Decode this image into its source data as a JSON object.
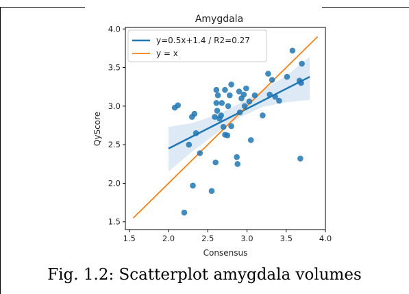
{
  "caption": "Fig. 1.2: Scatterplot amygdala volumes",
  "chart_data": {
    "type": "scatter",
    "title": "Amygdala",
    "xlabel": "Consensus",
    "ylabel": "QyScore",
    "xlim": [
      1.45,
      4.0
    ],
    "ylim": [
      1.4,
      4.02
    ],
    "xticks": [
      "1.5",
      "2.0",
      "2.5",
      "3.0",
      "3.5",
      "4.0"
    ],
    "yticks": [
      "1.5",
      "2.0",
      "2.5",
      "3.0",
      "3.5",
      "4.0"
    ],
    "grid": false,
    "legend_position": "top-left",
    "legend": [
      "y=0.5x+1.4 / R2=0.27",
      "y = x"
    ],
    "colors": {
      "points": "#1f77b4",
      "fit": "#1f77b4",
      "identity": "#ff7f0e",
      "band": "#c6dbef"
    },
    "points": [
      [
        2.08,
        2.98
      ],
      [
        2.12,
        3.01
      ],
      [
        2.2,
        1.62
      ],
      [
        2.26,
        2.5
      ],
      [
        2.3,
        2.86
      ],
      [
        2.31,
        1.97
      ],
      [
        2.33,
        2.9
      ],
      [
        2.35,
        2.65
      ],
      [
        2.4,
        2.39
      ],
      [
        2.55,
        1.9
      ],
      [
        2.59,
        2.86
      ],
      [
        2.6,
        2.27
      ],
      [
        2.61,
        3.04
      ],
      [
        2.61,
        3.21
      ],
      [
        2.62,
        2.94
      ],
      [
        2.63,
        3.14
      ],
      [
        2.65,
        2.84
      ],
      [
        2.67,
        2.88
      ],
      [
        2.68,
        3.04
      ],
      [
        2.7,
        2.73
      ],
      [
        2.72,
        3.21
      ],
      [
        2.72,
        2.63
      ],
      [
        2.75,
        2.62
      ],
      [
        2.76,
        3.0
      ],
      [
        2.78,
        3.14
      ],
      [
        2.8,
        3.28
      ],
      [
        2.8,
        2.74
      ],
      [
        2.87,
        2.34
      ],
      [
        2.88,
        2.25
      ],
      [
        2.9,
        3.19
      ],
      [
        2.91,
        2.92
      ],
      [
        2.93,
        3.1
      ],
      [
        2.96,
        3.15
      ],
      [
        2.97,
        3.0
      ],
      [
        2.99,
        3.23
      ],
      [
        3.03,
        3.06
      ],
      [
        3.05,
        2.56
      ],
      [
        3.1,
        3.14
      ],
      [
        3.2,
        2.88
      ],
      [
        3.27,
        3.42
      ],
      [
        3.29,
        3.15
      ],
      [
        3.32,
        3.34
      ],
      [
        3.36,
        3.12
      ],
      [
        3.41,
        3.07
      ],
      [
        3.51,
        3.38
      ],
      [
        3.58,
        3.72
      ],
      [
        3.67,
        3.33
      ],
      [
        3.68,
        2.32
      ],
      [
        3.69,
        3.3
      ],
      [
        3.7,
        3.55
      ]
    ],
    "series": [
      {
        "name": "y=0.5x+1.4 / R2=0.27",
        "type": "line",
        "x": [
          2.0,
          3.8
        ],
        "y": [
          2.45,
          3.38
        ]
      },
      {
        "name": "y = x",
        "type": "line",
        "x": [
          1.55,
          3.9
        ],
        "y": [
          1.55,
          3.9
        ]
      }
    ],
    "confidence_band": {
      "x": [
        2.0,
        2.3,
        2.6,
        2.9,
        3.2,
        3.5,
        3.8
      ],
      "lower": [
        2.15,
        2.41,
        2.64,
        2.85,
        2.99,
        3.05,
        3.08
      ],
      "upper": [
        2.73,
        2.78,
        2.88,
        3.03,
        3.21,
        3.39,
        3.64
      ]
    }
  }
}
